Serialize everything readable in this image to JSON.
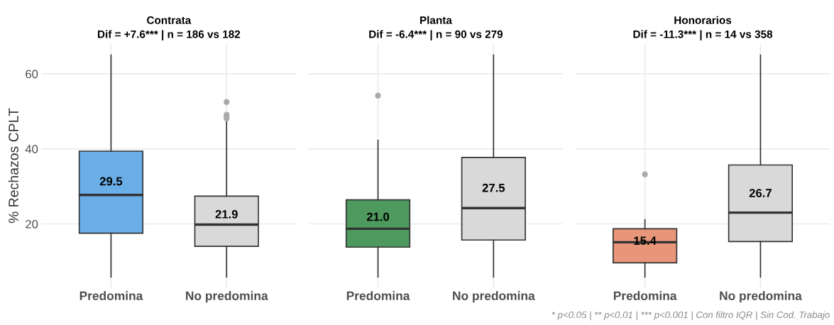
{
  "chart_data": [
    {
      "type": "box",
      "title": "Contrata",
      "subtitle": "Dif = +7.6*** | n = 186 vs 182",
      "ylabel": "% Rechazos CPLT",
      "categories": [
        "Predomina",
        "No predomina"
      ],
      "colors": [
        "#6aaee8",
        "#d9d9d9"
      ],
      "ylim": [
        3,
        68
      ],
      "yticks": [
        20,
        40,
        60
      ],
      "grid": true,
      "value_labels": [
        "29.5",
        "21.9"
      ],
      "boxes": [
        {
          "low": 5.8,
          "q1": 17.5,
          "median": 27.7,
          "q3": 39.4,
          "high": 65
        },
        {
          "low": 5.8,
          "q1": 14.0,
          "median": 19.8,
          "q3": 27.4,
          "high": 47.5,
          "outliers": [
            48.1,
            48.5,
            49.1,
            52.5
          ]
        }
      ]
    },
    {
      "type": "box",
      "title": "Planta",
      "subtitle": "Dif = -6.4*** | n = 90 vs 279",
      "categories": [
        "Predomina",
        "No predomina"
      ],
      "colors": [
        "#4e9a5e",
        "#d9d9d9"
      ],
      "ylim": [
        3,
        68
      ],
      "yticks": [
        20,
        40,
        60
      ],
      "grid": true,
      "tick_labels": "x",
      "value_labels": [
        "21.0",
        "27.5"
      ],
      "boxes": [
        {
          "low": 5.8,
          "q1": 13.8,
          "median": 18.7,
          "q3": 26.4,
          "high": 42.3,
          "outliers": [
            54.2
          ]
        },
        {
          "low": 5.8,
          "q1": 15.7,
          "median": 24.2,
          "q3": 37.7,
          "high": 65
        }
      ]
    },
    {
      "type": "box",
      "title": "Honorarios",
      "subtitle": "Dif = -11.3*** | n = 14 vs 358",
      "categories": [
        "Predomina",
        "No predomina"
      ],
      "colors": [
        "#e8967a",
        "#d9d9d9"
      ],
      "ylim": [
        3,
        68
      ],
      "yticks": [
        20,
        40,
        60
      ],
      "grid": true,
      "tick_labels": "x",
      "value_labels": [
        "15.4",
        "26.7"
      ],
      "annotations": [
        "* p<0.05 | ** p<0.01 | *** p<0.001 | Con filtro IQR | Sin Cod. Trabajo"
      ],
      "boxes": [
        {
          "low": 5.8,
          "q1": 9.6,
          "median": 15.1,
          "q3": 18.7,
          "high": 21.1,
          "outliers": [
            33.2
          ]
        },
        {
          "low": 5.8,
          "q1": 15.3,
          "median": 23.0,
          "q3": 35.7,
          "high": 65
        }
      ]
    }
  ]
}
